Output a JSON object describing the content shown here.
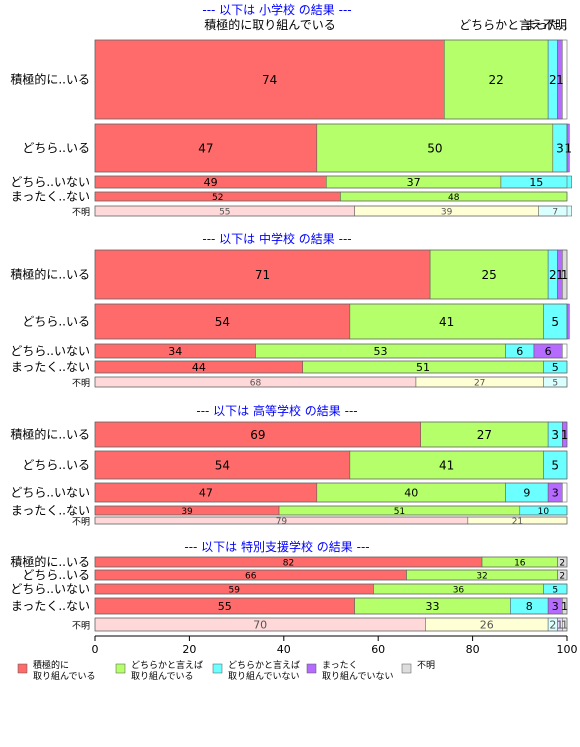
{
  "chart_data": {
    "type": "bar",
    "orientation": "horizontal-stacked",
    "xlim": [
      0,
      100
    ],
    "x_ticks": [
      0,
      20,
      40,
      60,
      80,
      100
    ],
    "grid": false,
    "legend_position": "bottom-left",
    "colors": [
      "#FF6B6B",
      "#B5FF6B",
      "#6BFFFF",
      "#B56BFF",
      "#DDDDDD"
    ],
    "legend": [
      "積極的に取り組んでいる",
      "どちらかと言えば取り組んでいる",
      "どちらかと言えば取り組んでいない",
      "まったく取り組んでいない",
      "不明"
    ],
    "top_column_labels": [
      "積極的に取り組んでいる",
      "どちらかと言え..",
      "まった..",
      "不明"
    ],
    "groups": [
      {
        "title": "--- 以下は 小学校 の結果 ---",
        "rows": [
          {
            "label": "積極的に..いる",
            "values": [
              74,
              22,
              2,
              1,
              0
            ],
            "labels": [
              "74",
              "22",
              "2",
              "1",
              ""
            ]
          },
          {
            "label": "どちら..いる",
            "values": [
              47,
              50,
              3,
              0.5,
              0
            ],
            "labels": [
              "47",
              "50",
              "3",
              "1",
              ""
            ]
          },
          {
            "label": "どちら..いない",
            "values": [
              49,
              37,
              15,
              0,
              0
            ],
            "labels": [
              "49",
              "37",
              "15",
              "",
              ""
            ]
          },
          {
            "label": "まったく..ない",
            "values": [
              52,
              48,
              0,
              0,
              0
            ],
            "labels": [
              "52",
              "48",
              "",
              "",
              ""
            ]
          },
          {
            "label": "不明",
            "light": true,
            "values": [
              55,
              39,
              7,
              0,
              0
            ],
            "labels": [
              "55",
              "39",
              "7",
              "",
              ""
            ]
          }
        ]
      },
      {
        "title": "--- 以下は 中学校 の結果 ---",
        "rows": [
          {
            "label": "積極的に..いる",
            "values": [
              71,
              25,
              2,
              1,
              1
            ],
            "labels": [
              "71",
              "25",
              "2",
              "1",
              "1"
            ]
          },
          {
            "label": "どちら..いる",
            "values": [
              54,
              41,
              5,
              0.5,
              0
            ],
            "labels": [
              "54",
              "41",
              "5",
              "",
              ""
            ]
          },
          {
            "label": "どちら..いない",
            "values": [
              34,
              53,
              6,
              6,
              0
            ],
            "labels": [
              "34",
              "53",
              "6",
              "6",
              ""
            ]
          },
          {
            "label": "まったく..ない",
            "values": [
              44,
              51,
              5,
              0,
              0
            ],
            "labels": [
              "44",
              "51",
              "5",
              "",
              ""
            ]
          },
          {
            "label": "不明",
            "light": true,
            "values": [
              68,
              27,
              5,
              0,
              0
            ],
            "labels": [
              "68",
              "27",
              "5",
              "",
              ""
            ]
          }
        ]
      },
      {
        "title": "--- 以下は 高等学校 の結果 ---",
        "rows": [
          {
            "label": "積極的に..いる",
            "values": [
              69,
              27,
              3,
              1,
              0
            ],
            "labels": [
              "69",
              "27",
              "3",
              "1",
              ""
            ]
          },
          {
            "label": "どちら..いる",
            "values": [
              54,
              41,
              5,
              0,
              0
            ],
            "labels": [
              "54",
              "41",
              "5",
              "",
              ""
            ]
          },
          {
            "label": "どちら..いない",
            "values": [
              47,
              40,
              9,
              3,
              0
            ],
            "labels": [
              "47",
              "40",
              "9",
              "3",
              ""
            ]
          },
          {
            "label": "まったく..ない",
            "values": [
              39,
              51,
              10,
              0,
              0
            ],
            "labels": [
              "39",
              "51",
              "10",
              "",
              ""
            ]
          },
          {
            "label": "不明",
            "light": true,
            "values": [
              79,
              21,
              0,
              0,
              0
            ],
            "labels": [
              "79",
              "21",
              "",
              "",
              ""
            ]
          }
        ]
      },
      {
        "title": "--- 以下は 特別支援学校 の結果 ---",
        "rows": [
          {
            "label": "積極的に..いる",
            "values": [
              82,
              16,
              0,
              0,
              2
            ],
            "labels": [
              "82",
              "16",
              "",
              "",
              "2"
            ]
          },
          {
            "label": "どちら..いる",
            "values": [
              66,
              32,
              0,
              0,
              2
            ],
            "labels": [
              "66",
              "32",
              "",
              "",
              "2"
            ]
          },
          {
            "label": "どちら..いない",
            "values": [
              59,
              36,
              5,
              0,
              0
            ],
            "labels": [
              "59",
              "36",
              "5",
              "",
              ""
            ]
          },
          {
            "label": "まったく..ない",
            "values": [
              55,
              33,
              8,
              3,
              1
            ],
            "labels": [
              "55",
              "33",
              "8",
              "3",
              "1"
            ]
          },
          {
            "label": "不明",
            "light": true,
            "values": [
              70,
              26,
              2,
              1,
              1
            ],
            "labels": [
              "70",
              "26",
              "2",
              "1",
              "1"
            ]
          }
        ]
      }
    ]
  }
}
